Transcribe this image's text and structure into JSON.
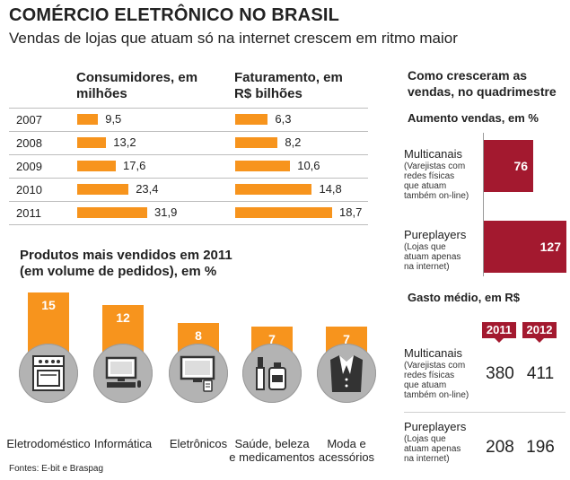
{
  "header": {
    "title": "COMÉRCIO ELETRÔNICO NO BRASIL",
    "subtitle": "Vendas de lojas que atuam só na internet crescem em ritmo maior"
  },
  "chart_data": [
    {
      "type": "bar",
      "title": "Consumidores, em milhões",
      "categories": [
        "2007",
        "2008",
        "2009",
        "2010",
        "2011"
      ],
      "values": [
        9.5,
        13.2,
        17.6,
        23.4,
        31.9
      ],
      "labels": [
        "9,5",
        "13,2",
        "17,6",
        "23,4",
        "31,9"
      ]
    },
    {
      "type": "bar",
      "title": "Faturamento, em R$ bilhões",
      "categories": [
        "2007",
        "2008",
        "2009",
        "2010",
        "2011"
      ],
      "values": [
        6.3,
        8.2,
        10.6,
        14.8,
        18.7
      ],
      "labels": [
        "6,3",
        "8,2",
        "10,6",
        "14,8",
        "18,7"
      ]
    },
    {
      "type": "bar",
      "title": "Produtos mais vendidos em 2011",
      "subtitle": "(em volume de pedidos), em %",
      "categories": [
        "Eletrodoméstico",
        "Informática",
        "Eletrônicos",
        "Saúde, beleza e medicamentos",
        "Moda e acessórios"
      ],
      "label_lines": [
        [
          "Eletrodoméstico"
        ],
        [
          "Informática"
        ],
        [
          "Eletrônicos"
        ],
        [
          "Saúde, beleza",
          "e medicamentos"
        ],
        [
          "Moda e",
          "acessórios"
        ]
      ],
      "values": [
        15,
        12,
        8,
        7,
        7
      ],
      "icons": [
        "stove-icon",
        "computer-icon",
        "tv-icon",
        "cosmetics-icon",
        "clothing-icon"
      ]
    },
    {
      "type": "bar",
      "title": "Como cresceram as vendas, no quadrimestre",
      "subtitle": "Aumento vendas, em %",
      "categories": [
        "Multicanais",
        "Pureplayers"
      ],
      "descriptions": [
        "(Varejistas com redes físicas que atuam também on-line)",
        "(Lojas que atuam apenas na internet)"
      ],
      "desc_lines": [
        [
          "(Varejistas com",
          "redes físicas",
          "que atuam",
          "também on-line)"
        ],
        [
          "(Lojas que",
          "atuam apenas",
          "na internet)"
        ]
      ],
      "values": [
        76,
        127
      ]
    },
    {
      "type": "table",
      "title": "Gasto médio, em R$",
      "columns": [
        "2011",
        "2012"
      ],
      "rows": [
        {
          "name": "Multicanais",
          "desc_lines": [
            "(Varejistas com",
            "redes físicas",
            "que atuam",
            "também on-line)"
          ],
          "values": [
            380,
            411
          ]
        },
        {
          "name": "Pureplayers",
          "desc_lines": [
            "(Lojas que",
            "atuam apenas",
            "na internet)"
          ],
          "values": [
            208,
            196
          ]
        }
      ]
    }
  ],
  "colors": {
    "orange": "#f7941d",
    "red": "#a3192f",
    "grey": "#b3b3b3"
  },
  "footer": {
    "source": "Fontes: E-bit e Braspag"
  }
}
